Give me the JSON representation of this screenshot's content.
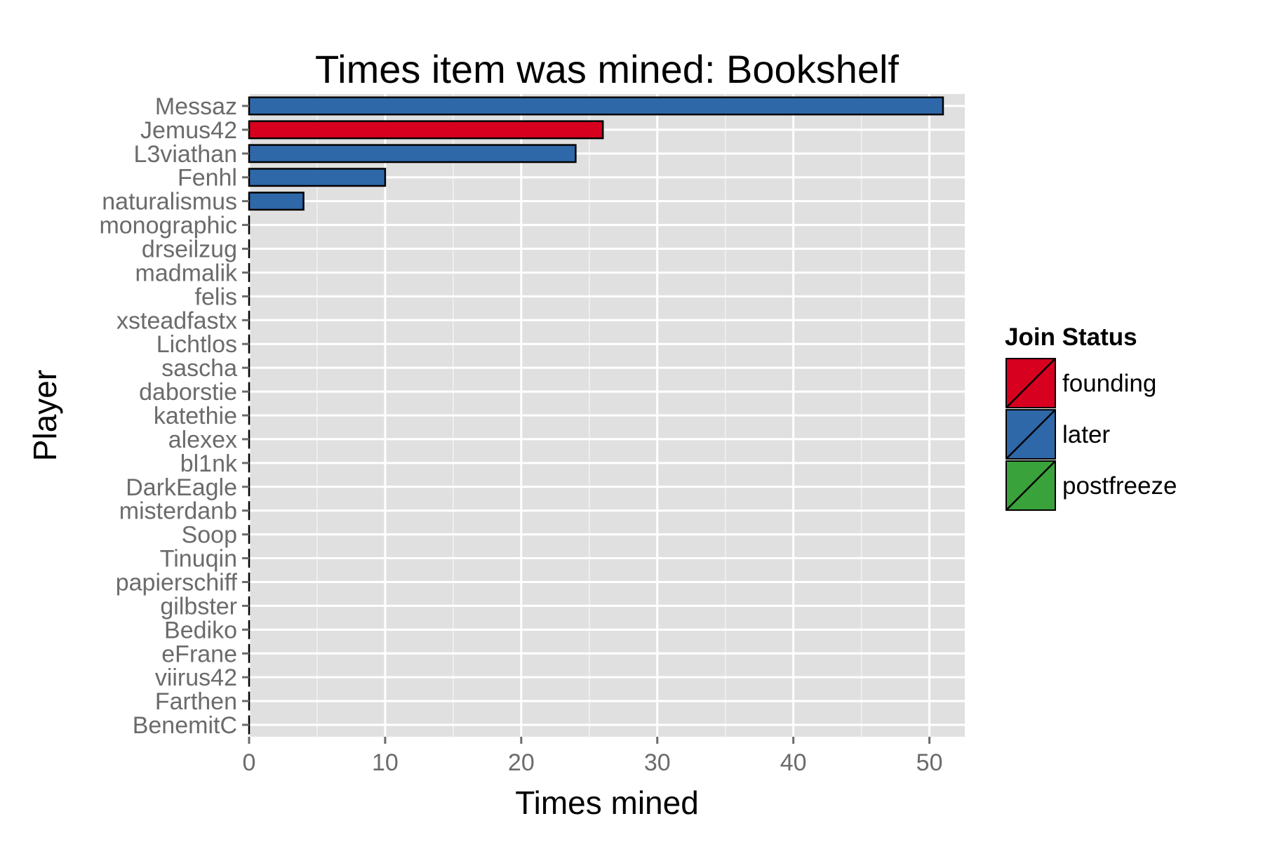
{
  "chart_data": {
    "type": "bar",
    "orientation": "horizontal",
    "title": "Times item was mined: Bookshelf",
    "xlabel": "Times mined",
    "ylabel": "Player",
    "xlim": [
      0,
      52.6
    ],
    "xticks": [
      0,
      10,
      20,
      30,
      40,
      50
    ],
    "grid": true,
    "legend_position": "right",
    "categories": [
      "Messaz",
      "Jemus42",
      "L3viathan",
      "Fenhl",
      "naturalismus",
      "monographic",
      "drseilzug",
      "madmalik",
      "felis",
      "xsteadfastx",
      "Lichtlos",
      "sascha",
      "daborstie",
      "katethie",
      "alexex",
      "bl1nk",
      "DarkEagle",
      "misterdanb",
      "Soop",
      "Tinuqin",
      "papierschiff",
      "gilbster",
      "Bediko",
      "eFrane",
      "viirus42",
      "Farthen",
      "BenemitC"
    ],
    "values": [
      51,
      26,
      24,
      10,
      4,
      0,
      0,
      0,
      0,
      0,
      0,
      0,
      0,
      0,
      0,
      0,
      0,
      0,
      0,
      0,
      0,
      0,
      0,
      0,
      0,
      0,
      0
    ],
    "groups": [
      "later",
      "founding",
      "later",
      "later",
      "later",
      "later",
      "later",
      "later",
      "later",
      "later",
      "later",
      "later",
      "later",
      "later",
      "later",
      "later",
      "later",
      "later",
      "later",
      "later",
      "later",
      "later",
      "later",
      "later",
      "later",
      "later",
      "later"
    ],
    "legend": {
      "title": "Join Status",
      "entries": [
        {
          "label": "founding",
          "color": "#d7001f"
        },
        {
          "label": "later",
          "color": "#2f68a9"
        },
        {
          "label": "postfreeze",
          "color": "#3aa23a"
        }
      ]
    },
    "panel_background": "#e0e0e0",
    "grid_color": "#ffffff"
  }
}
